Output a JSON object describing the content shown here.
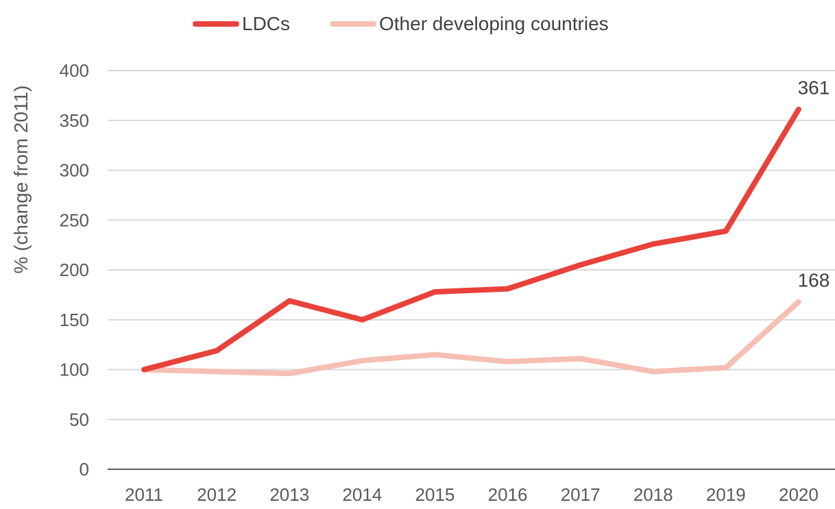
{
  "chart_data": {
    "type": "line",
    "x": [
      "2011",
      "2012",
      "2013",
      "2014",
      "2015",
      "2016",
      "2017",
      "2018",
      "2019",
      "2020"
    ],
    "ylabel": "% (change from 2011)",
    "ylim": [
      0,
      400
    ],
    "yticks": [
      0,
      50,
      100,
      150,
      200,
      250,
      300,
      350,
      400
    ],
    "grid": true,
    "legend_position": "top",
    "series": [
      {
        "name": "LDCs",
        "color": "#e8423b",
        "values": [
          100,
          119,
          169,
          150,
          178,
          181,
          205,
          226,
          239,
          361
        ],
        "end_label": "361"
      },
      {
        "name": "Other developing countries",
        "color": "#f6bfb3",
        "values": [
          100,
          98,
          96,
          109,
          115,
          108,
          111,
          98,
          102,
          168
        ],
        "end_label": "168"
      }
    ]
  }
}
